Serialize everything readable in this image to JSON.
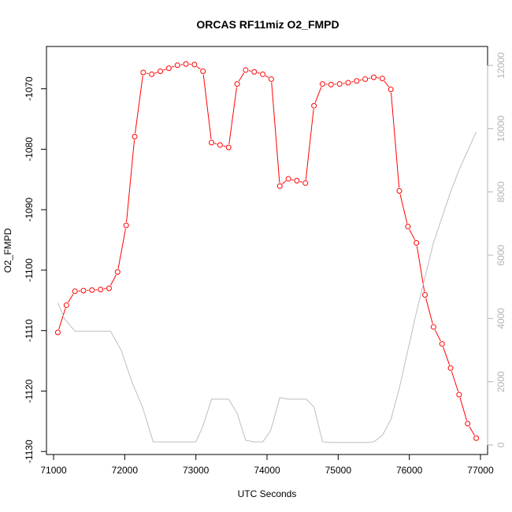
{
  "chart_data": {
    "type": "line",
    "title": "ORCAS RF11miz O2_FMPD",
    "xlabel": "UTC Seconds",
    "ylabel": "O2_FMPD",
    "xlim": [
      70900,
      77100
    ],
    "ylim": [
      -1130.5,
      -1063
    ],
    "y2lim": [
      -300,
      12600
    ],
    "x_ticks": [
      71000,
      72000,
      73000,
      74000,
      75000,
      76000,
      77000
    ],
    "y_ticks": [
      -1130,
      -1120,
      -1110,
      -1100,
      -1090,
      -1080,
      -1070
    ],
    "y2_ticks": [
      0,
      2000,
      4000,
      6000,
      8000,
      10000,
      12000
    ],
    "grid": false,
    "series": [
      {
        "color": "#ff0000",
        "axis": "left",
        "markers": "open-circle",
        "x": [
          71060,
          71180,
          71300,
          71420,
          71540,
          71660,
          71780,
          71900,
          72020,
          72140,
          72260,
          72380,
          72500,
          72620,
          72740,
          72860,
          72980,
          73100,
          73220,
          73340,
          73460,
          73580,
          73700,
          73820,
          73940,
          74060,
          74180,
          74300,
          74420,
          74540,
          74660,
          74780,
          74900,
          75020,
          75140,
          75260,
          75380,
          75500,
          75620,
          75740,
          75860,
          75980,
          76100,
          76220,
          76340,
          76460,
          76580,
          76700,
          76820,
          76940
        ],
        "y": [
          -1110.3,
          -1105.8,
          -1103.5,
          -1103.4,
          -1103.3,
          -1103.2,
          -1103.0,
          -1100.3,
          -1092.6,
          -1077.9,
          -1067.3,
          -1067.6,
          -1067.1,
          -1066.6,
          -1066.1,
          -1065.9,
          -1066.0,
          -1067.1,
          -1078.9,
          -1079.3,
          -1079.7,
          -1069.2,
          -1066.9,
          -1067.2,
          -1067.6,
          -1068.4,
          -1086.1,
          -1084.9,
          -1085.2,
          -1085.6,
          -1072.8,
          -1069.2,
          -1069.3,
          -1069.2,
          -1069.0,
          -1068.7,
          -1068.4,
          -1068.1,
          -1068.3,
          -1070.1,
          -1086.9,
          -1092.8,
          -1095.5,
          -1104.1,
          -1109.4,
          -1112.2,
          -1116.2,
          -1120.6,
          -1125.4,
          -1127.8
        ]
      },
      {
        "color": "#bebebe",
        "axis": "right",
        "markers": "none",
        "x": [
          71060,
          71150,
          71300,
          71500,
          71800,
          71950,
          72100,
          72250,
          72400,
          72550,
          72700,
          72850,
          73000,
          73100,
          73220,
          73350,
          73460,
          73580,
          73700,
          73820,
          73940,
          74050,
          74180,
          74300,
          74420,
          74550,
          74660,
          74780,
          74900,
          75000,
          75200,
          75400,
          75500,
          75620,
          75740,
          75860,
          75980,
          76100,
          76220,
          76340,
          76460,
          76580,
          76700,
          76820,
          76940
        ],
        "y": [
          4500,
          4000,
          3600,
          3600,
          3600,
          3000,
          2000,
          1200,
          100,
          100,
          100,
          100,
          100,
          600,
          1450,
          1450,
          1450,
          1000,
          150,
          100,
          100,
          450,
          1500,
          1450,
          1450,
          1450,
          1200,
          100,
          80,
          80,
          80,
          80,
          100,
          300,
          800,
          1800,
          3000,
          4200,
          5300,
          6400,
          7200,
          8000,
          8700,
          9300,
          9900
        ]
      }
    ]
  }
}
